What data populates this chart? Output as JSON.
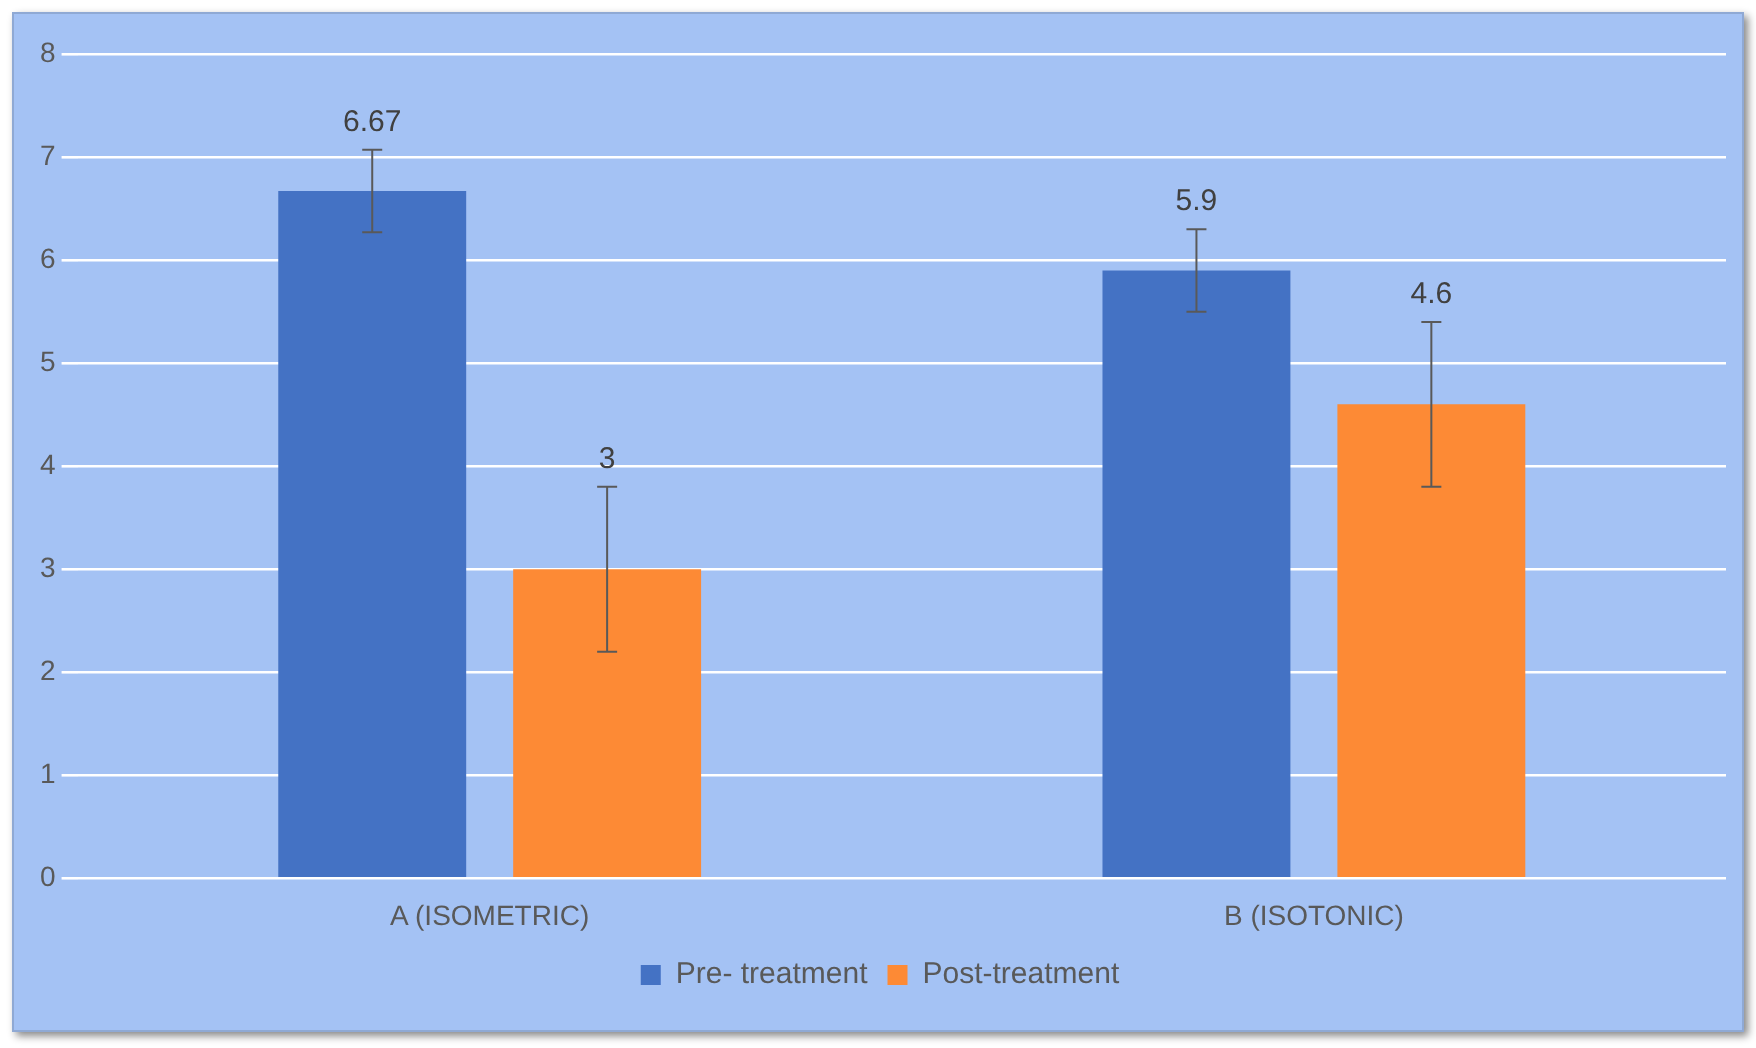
{
  "chart_data": {
    "type": "bar",
    "categories": [
      "A (ISOMETRIC)",
      "B (ISOTONIC)"
    ],
    "series": [
      {
        "name": "Pre- treatment",
        "color": "#4472c4",
        "values": [
          6.67,
          5.9
        ],
        "errors": [
          0.4,
          0.4
        ]
      },
      {
        "name": "Post-treatment",
        "color": "#fd8a35",
        "values": [
          3,
          4.6
        ],
        "errors": [
          0.8,
          0.8
        ]
      }
    ],
    "ylim": [
      0,
      8
    ],
    "yticks": [
      0,
      1,
      2,
      3,
      4,
      5,
      6,
      7,
      8
    ],
    "grid": "y",
    "legend": "bottom",
    "data_labels": true
  }
}
